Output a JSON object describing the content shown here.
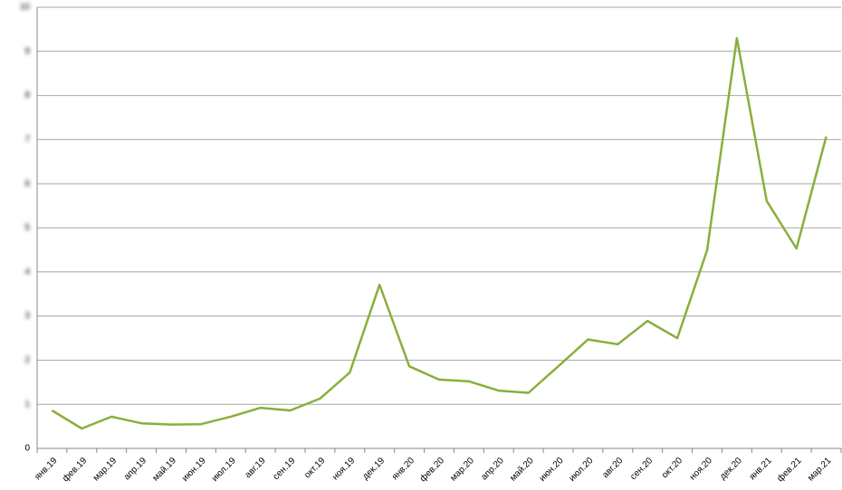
{
  "chart_data": {
    "type": "line",
    "categories": [
      "янв.19",
      "фев.19",
      "мар.19",
      "апр.19",
      "май.19",
      "июн.19",
      "июл.19",
      "авг.19",
      "сен.19",
      "окт.19",
      "ноя.19",
      "дек.19",
      "янв.20",
      "фев.20",
      "мар.20",
      "апр.20",
      "май.20",
      "июн.20",
      "июл.20",
      "авг.20",
      "сен.20",
      "окт.20",
      "ноя.20",
      "дек.20",
      "янв.21",
      "фев.21",
      "мар.21"
    ],
    "series": [
      {
        "color": "#8aae3c",
        "values": [
          0.86,
          0.45,
          0.72,
          0.57,
          0.54,
          0.55,
          0.72,
          0.92,
          0.86,
          1.13,
          1.72,
          3.71,
          1.86,
          1.56,
          1.52,
          1.31,
          1.26,
          1.86,
          2.47,
          2.36,
          2.89,
          2.5,
          4.49,
          9.3,
          5.61,
          4.53,
          7.07
        ]
      }
    ],
    "ylim": [
      0,
      10
    ],
    "yticks": [
      0,
      1,
      2,
      3,
      4,
      5,
      6,
      7,
      8,
      9,
      10
    ],
    "grid": true
  }
}
